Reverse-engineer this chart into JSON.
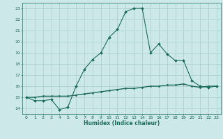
{
  "xlabel": "Humidex (Indice chaleur)",
  "bg_color": "#cce8e8",
  "grid_color": "#aacccc",
  "line_color": "#1a6b5a",
  "xlim": [
    -0.5,
    23.5
  ],
  "ylim": [
    13.5,
    23.5
  ],
  "yticks": [
    14,
    15,
    16,
    17,
    18,
    19,
    20,
    21,
    22,
    23
  ],
  "xticks": [
    0,
    1,
    2,
    3,
    4,
    5,
    6,
    7,
    8,
    9,
    10,
    11,
    12,
    13,
    14,
    15,
    16,
    17,
    18,
    19,
    20,
    21,
    22,
    23
  ],
  "line1_x": [
    0,
    1,
    2,
    3,
    4,
    5,
    6,
    7,
    8,
    9,
    10,
    11,
    12,
    13,
    14,
    15,
    16,
    17,
    18,
    19,
    20,
    21,
    22,
    23
  ],
  "line1_y": [
    15.0,
    14.7,
    14.7,
    14.8,
    13.9,
    14.1,
    16.0,
    17.5,
    18.4,
    19.0,
    20.4,
    21.1,
    22.7,
    23.0,
    23.0,
    19.0,
    19.8,
    18.9,
    18.3,
    18.3,
    16.5,
    16.0,
    15.9,
    16.0
  ],
  "line2_x": [
    0,
    1,
    2,
    3,
    4,
    5,
    6,
    7,
    8,
    9,
    10,
    11,
    12,
    13,
    14,
    15,
    16,
    17,
    18,
    19,
    20,
    21,
    22,
    23
  ],
  "line2_y": [
    15.0,
    15.0,
    15.1,
    15.1,
    15.1,
    15.1,
    15.2,
    15.3,
    15.4,
    15.5,
    15.6,
    15.7,
    15.8,
    15.8,
    15.9,
    16.0,
    16.0,
    16.1,
    16.1,
    16.2,
    16.0,
    15.9,
    16.0,
    16.0
  ]
}
